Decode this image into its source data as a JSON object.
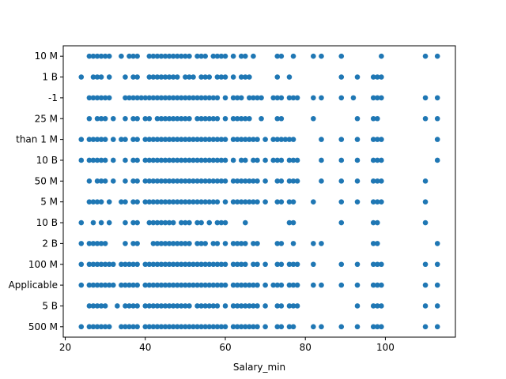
{
  "chart_data": {
    "type": "scatter",
    "title": "",
    "xlabel": "Salary_min",
    "ylabel": "",
    "xlim": [
      19.5,
      117.5
    ],
    "x_ticks": [
      20,
      40,
      60,
      80,
      100
    ],
    "categories": [
      "500 M",
      "5 B",
      "Applicable",
      "100 M",
      "2 B",
      "10 B",
      "5 M",
      "50 M",
      "10 B",
      "than 1 M",
      "25 M",
      "-1",
      "1 B",
      "10 M"
    ],
    "grid": false,
    "legend": "none",
    "marker_color": "#1f77b4",
    "points": [
      {
        "category": "10 M",
        "x": [
          26,
          27,
          28,
          29,
          30,
          31,
          34,
          36,
          37,
          38,
          41,
          42,
          43,
          44,
          45,
          46,
          47,
          48,
          49,
          50,
          51,
          53,
          54,
          55,
          57,
          58,
          59,
          60,
          62,
          64,
          65,
          67,
          73,
          74,
          77,
          82,
          84,
          89,
          99,
          110,
          113
        ]
      },
      {
        "category": "1 B",
        "x": [
          24,
          27,
          28,
          29,
          31,
          35,
          37,
          38,
          41,
          42,
          43,
          44,
          45,
          46,
          47,
          48,
          50,
          51,
          52,
          54,
          55,
          56,
          58,
          59,
          60,
          62,
          64,
          65,
          66,
          73,
          76,
          89,
          93,
          97,
          98,
          99
        ]
      },
      {
        "category": "-1",
        "x": [
          26,
          27,
          28,
          29,
          30,
          31,
          35,
          36,
          37,
          38,
          39,
          40,
          41,
          42,
          43,
          44,
          45,
          46,
          47,
          48,
          49,
          50,
          51,
          52,
          53,
          54,
          55,
          56,
          57,
          58,
          60,
          62,
          63,
          64,
          66,
          67,
          68,
          69,
          72,
          73,
          74,
          76,
          77,
          78,
          82,
          84,
          89,
          92,
          97,
          98,
          99,
          110,
          113
        ]
      },
      {
        "category": "25 M",
        "x": [
          26,
          28,
          29,
          30,
          32,
          35,
          37,
          38,
          40,
          41,
          43,
          44,
          45,
          46,
          47,
          48,
          49,
          50,
          51,
          53,
          54,
          55,
          56,
          57,
          58,
          60,
          62,
          63,
          64,
          65,
          66,
          69,
          73,
          74,
          82,
          93,
          97,
          98,
          110,
          113
        ]
      },
      {
        "category": "than 1 M",
        "x": [
          24,
          26,
          27,
          28,
          29,
          30,
          32,
          34,
          35,
          37,
          38,
          40,
          41,
          42,
          43,
          44,
          45,
          46,
          47,
          48,
          49,
          50,
          51,
          52,
          53,
          54,
          55,
          56,
          57,
          58,
          59,
          60,
          62,
          63,
          64,
          65,
          66,
          67,
          68,
          70,
          72,
          73,
          74,
          75,
          76,
          77,
          84,
          89,
          93,
          97,
          98,
          99,
          113
        ]
      },
      {
        "category": "10 B",
        "x": [
          24,
          26,
          27,
          28,
          29,
          30,
          32,
          35,
          37,
          38,
          40,
          41,
          42,
          43,
          44,
          45,
          46,
          47,
          48,
          49,
          50,
          51,
          52,
          53,
          54,
          55,
          56,
          57,
          58,
          59,
          60,
          62,
          64,
          65,
          67,
          68,
          70,
          72,
          73,
          74,
          76,
          77,
          78,
          84,
          89,
          93,
          97,
          98,
          99,
          113
        ]
      },
      {
        "category": "50 M",
        "x": [
          26,
          28,
          29,
          30,
          32,
          35,
          37,
          38,
          40,
          41,
          42,
          43,
          44,
          45,
          46,
          47,
          48,
          49,
          50,
          51,
          52,
          53,
          54,
          55,
          56,
          57,
          58,
          59,
          60,
          62,
          63,
          64,
          65,
          66,
          67,
          68,
          70,
          73,
          74,
          76,
          77,
          78,
          84,
          89,
          93,
          97,
          98,
          99,
          110
        ]
      },
      {
        "category": "5 M",
        "x": [
          26,
          27,
          28,
          29,
          31,
          34,
          35,
          37,
          38,
          40,
          41,
          42,
          43,
          44,
          45,
          46,
          47,
          48,
          49,
          50,
          51,
          52,
          53,
          54,
          55,
          56,
          57,
          58,
          60,
          62,
          63,
          64,
          65,
          66,
          67,
          68,
          70,
          73,
          74,
          76,
          77,
          82,
          89,
          93,
          97,
          98,
          99,
          110
        ]
      },
      {
        "category": "10 B",
        "x": [
          24,
          27,
          29,
          31,
          35,
          37,
          38,
          41,
          42,
          43,
          44,
          45,
          46,
          47,
          49,
          50,
          51,
          53,
          54,
          56,
          58,
          59,
          60,
          65,
          76,
          77,
          89,
          97,
          98,
          110
        ]
      },
      {
        "category": "2 B",
        "x": [
          24,
          26,
          27,
          28,
          29,
          30,
          35,
          37,
          38,
          42,
          43,
          44,
          45,
          46,
          47,
          48,
          49,
          50,
          51,
          53,
          54,
          55,
          57,
          58,
          60,
          62,
          63,
          64,
          65,
          67,
          68,
          73,
          74,
          77,
          82,
          84,
          97,
          98,
          113
        ]
      },
      {
        "category": "100 M",
        "x": [
          24,
          26,
          27,
          28,
          29,
          30,
          31,
          32,
          34,
          35,
          36,
          37,
          38,
          40,
          41,
          42,
          43,
          44,
          45,
          46,
          47,
          48,
          49,
          50,
          51,
          52,
          53,
          54,
          55,
          56,
          57,
          58,
          59,
          60,
          62,
          63,
          64,
          65,
          67,
          68,
          70,
          73,
          74,
          76,
          77,
          78,
          82,
          89,
          93,
          97,
          98,
          99,
          110,
          113
        ]
      },
      {
        "category": "Applicable",
        "x": [
          24,
          26,
          27,
          28,
          29,
          30,
          31,
          32,
          34,
          35,
          36,
          37,
          38,
          40,
          41,
          42,
          43,
          44,
          45,
          46,
          47,
          48,
          49,
          50,
          51,
          52,
          53,
          54,
          55,
          56,
          57,
          58,
          59,
          60,
          62,
          63,
          64,
          65,
          66,
          67,
          68,
          70,
          72,
          73,
          74,
          76,
          77,
          78,
          82,
          84,
          89,
          93,
          97,
          98,
          99,
          110,
          113
        ]
      },
      {
        "category": "5 B",
        "x": [
          26,
          27,
          28,
          29,
          30,
          33,
          35,
          36,
          37,
          38,
          40,
          41,
          42,
          43,
          44,
          45,
          46,
          47,
          48,
          49,
          50,
          51,
          53,
          54,
          55,
          56,
          57,
          58,
          60,
          62,
          63,
          64,
          65,
          66,
          67,
          68,
          70,
          73,
          74,
          76,
          77,
          78,
          93,
          97,
          98,
          99,
          110,
          113
        ]
      },
      {
        "category": "500 M",
        "x": [
          24,
          26,
          27,
          28,
          29,
          30,
          31,
          34,
          35,
          36,
          37,
          38,
          40,
          41,
          42,
          43,
          44,
          45,
          46,
          47,
          48,
          49,
          50,
          51,
          52,
          53,
          54,
          55,
          56,
          57,
          58,
          59,
          60,
          62,
          63,
          64,
          65,
          66,
          67,
          68,
          70,
          73,
          74,
          76,
          77,
          82,
          84,
          89,
          93,
          97,
          98,
          99,
          110,
          113
        ]
      }
    ]
  }
}
